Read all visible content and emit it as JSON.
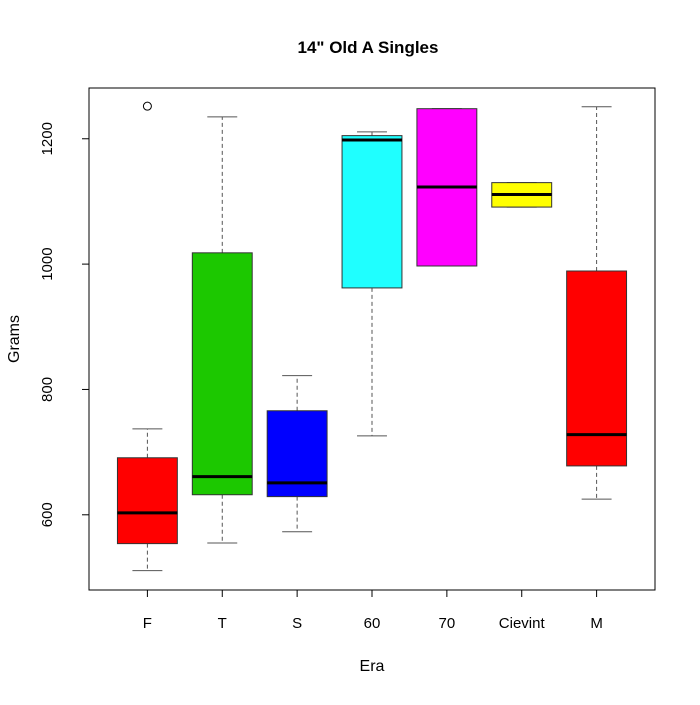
{
  "chart_data": {
    "type": "boxplot",
    "title": "14\" Old A Singles",
    "xlabel": "Era",
    "ylabel": "Grams",
    "ylim": [
      480,
      1281
    ],
    "yticks": [
      600,
      800,
      1000,
      1200
    ],
    "grid": false,
    "categories": [
      "F",
      "T",
      "S",
      "60",
      "70",
      "Cievint",
      "M"
    ],
    "boxes": [
      {
        "label": "F",
        "min": 511,
        "q1": 554,
        "median": 603,
        "q3": 691,
        "max": 737,
        "outliers": [
          1252
        ],
        "color": "#FF0000"
      },
      {
        "label": "T",
        "min": 555,
        "q1": 632,
        "median": 661,
        "q3": 1018,
        "max": 1235,
        "outliers": [],
        "color": "#1CC800"
      },
      {
        "label": "S",
        "min": 573,
        "q1": 629,
        "median": 651,
        "q3": 766,
        "max": 822,
        "outliers": [],
        "color": "#0000FF"
      },
      {
        "label": "60",
        "min": 726,
        "q1": 962,
        "median": 1198,
        "q3": 1205,
        "max": 1211,
        "outliers": [],
        "color": "#1FFFFF"
      },
      {
        "label": "70",
        "min": 997,
        "q1": 997,
        "median": 1123,
        "q3": 1248,
        "max": 1248,
        "outliers": [],
        "color": "#FF00FF"
      },
      {
        "label": "Cievint",
        "min": 1091,
        "q1": 1091,
        "median": 1111,
        "q3": 1130,
        "max": 1130,
        "outliers": [],
        "color": "#FFFF00"
      },
      {
        "label": "M",
        "min": 625,
        "q1": 678,
        "median": 728,
        "q3": 989,
        "max": 1251,
        "outliers": [],
        "color": "#FF0000"
      }
    ]
  }
}
